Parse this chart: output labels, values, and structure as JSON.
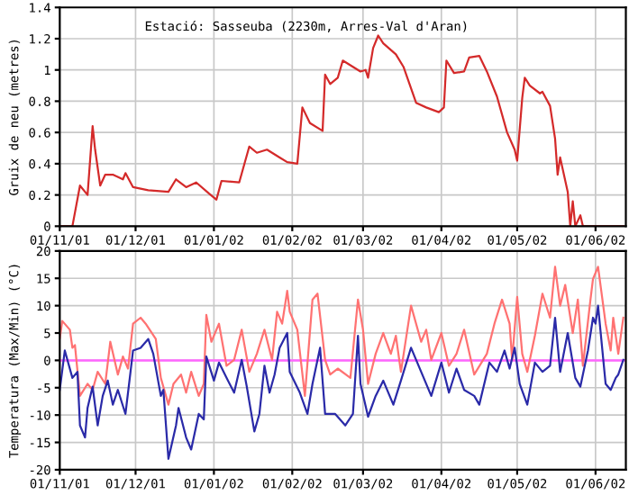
{
  "chart_data": [
    {
      "type": "line",
      "title": "Estació: Sasseuba (2230m, Arres-Val d'Aran)",
      "ylabel": "Gruix de neu (metres)",
      "grid": true,
      "legend": false,
      "marker": "none",
      "line_style": "solid",
      "xlim": [
        "2001-11-01",
        "2002-06-13"
      ],
      "xticks": [
        {
          "value": "2001-11-01",
          "label": "01/11/01"
        },
        {
          "value": "2001-12-01",
          "label": "01/12/01"
        },
        {
          "value": "2002-01-01",
          "label": "01/01/02"
        },
        {
          "value": "2002-02-01",
          "label": "01/02/02"
        },
        {
          "value": "2002-03-01",
          "label": "01/03/02"
        },
        {
          "value": "2002-04-01",
          "label": "01/04/02"
        },
        {
          "value": "2002-05-01",
          "label": "01/05/02"
        },
        {
          "value": "2002-06-01",
          "label": "01/06/02"
        }
      ],
      "ylim": [
        0,
        1.4
      ],
      "yticks": [
        0,
        0.2,
        0.4,
        0.6,
        0.8,
        1,
        1.2,
        1.4
      ],
      "series": [
        {
          "color": "#d42a2a",
          "x": [
            "2001-11-01",
            "2001-11-06",
            "2001-11-09",
            "2001-11-11",
            "2001-11-12",
            "2001-11-14",
            "2001-11-15",
            "2001-11-17",
            "2001-11-19",
            "2001-11-22",
            "2001-11-26",
            "2001-11-27",
            "2001-11-30",
            "2001-12-06",
            "2001-12-14",
            "2001-12-17",
            "2001-12-21",
            "2001-12-25",
            "2001-12-30",
            "2002-01-02",
            "2002-01-04",
            "2002-01-11",
            "2002-01-15",
            "2002-01-18",
            "2002-01-22",
            "2002-01-27",
            "2002-01-30",
            "2002-02-03",
            "2002-02-05",
            "2002-02-08",
            "2002-02-13",
            "2002-02-14",
            "2002-02-16",
            "2002-02-19",
            "2002-02-21",
            "2002-02-25",
            "2002-02-28",
            "2002-03-02",
            "2002-03-03",
            "2002-03-05",
            "2002-03-07",
            "2002-03-09",
            "2002-03-14",
            "2002-03-17",
            "2002-03-22",
            "2002-03-26",
            "2002-03-31",
            "2002-04-02",
            "2002-04-03",
            "2002-04-06",
            "2002-04-10",
            "2002-04-12",
            "2002-04-16",
            "2002-04-19",
            "2002-04-23",
            "2002-04-27",
            "2002-04-30",
            "2002-05-01",
            "2002-05-03",
            "2002-05-04",
            "2002-05-06",
            "2002-05-10",
            "2002-05-11",
            "2002-05-14",
            "2002-05-16",
            "2002-05-17",
            "2002-05-18",
            "2002-05-21",
            "2002-05-22",
            "2002-05-23",
            "2002-05-24",
            "2002-05-26",
            "2002-05-27",
            "2002-06-12"
          ],
          "values": [
            0,
            0,
            0.26,
            0.22,
            0.2,
            0.64,
            0.49,
            0.26,
            0.33,
            0.33,
            0.3,
            0.34,
            0.25,
            0.23,
            0.22,
            0.3,
            0.25,
            0.28,
            0.21,
            0.17,
            0.29,
            0.28,
            0.51,
            0.47,
            0.49,
            0.44,
            0.41,
            0.4,
            0.76,
            0.66,
            0.61,
            0.97,
            0.91,
            0.95,
            1.06,
            1.02,
            0.99,
            1.0,
            0.95,
            1.14,
            1.22,
            1.17,
            1.1,
            1.02,
            0.79,
            0.76,
            0.73,
            0.76,
            1.06,
            0.98,
            0.99,
            1.08,
            1.09,
            0.99,
            0.83,
            0.6,
            0.49,
            0.42,
            0.82,
            0.95,
            0.9,
            0.85,
            0.86,
            0.77,
            0.56,
            0.33,
            0.44,
            0.22,
            0,
            0.16,
            0,
            0.07,
            0,
            0
          ]
        }
      ]
    },
    {
      "type": "line",
      "ylabel": "Temperatura (Max/Min) (°C)",
      "grid": true,
      "legend": false,
      "marker": "none",
      "line_style": "solid",
      "xlim": [
        "2001-11-01",
        "2002-06-13"
      ],
      "xticks": [
        {
          "value": "2001-11-01",
          "label": "01/11/01"
        },
        {
          "value": "2001-12-01",
          "label": "01/12/01"
        },
        {
          "value": "2002-01-01",
          "label": "01/01/02"
        },
        {
          "value": "2002-02-01",
          "label": "01/02/02"
        },
        {
          "value": "2002-03-01",
          "label": "01/03/02"
        },
        {
          "value": "2002-04-01",
          "label": "01/04/02"
        },
        {
          "value": "2002-05-01",
          "label": "01/05/02"
        },
        {
          "value": "2002-06-01",
          "label": "01/06/02"
        }
      ],
      "ylim": [
        -20,
        20
      ],
      "yticks": [
        -20,
        -15,
        -10,
        -5,
        0,
        5,
        10,
        15,
        20
      ],
      "ref_lines": [
        {
          "axis": "y",
          "value": 0,
          "color": "#ff66ff"
        }
      ],
      "series": [
        {
          "color": "#ff7272",
          "x": [
            "2001-11-01",
            "2001-11-02",
            "2001-11-05",
            "2001-11-06",
            "2001-11-07",
            "2001-11-09",
            "2001-11-12",
            "2001-11-14",
            "2001-11-16",
            "2001-11-19",
            "2001-11-21",
            "2001-11-24",
            "2001-11-26",
            "2001-11-28",
            "2001-11-30",
            "2001-12-03",
            "2001-12-05",
            "2001-12-09",
            "2001-12-11",
            "2001-12-14",
            "2001-12-16",
            "2001-12-19",
            "2001-12-21",
            "2001-12-23",
            "2001-12-26",
            "2001-12-28",
            "2001-12-29",
            "2001-12-31",
            "2002-01-03",
            "2002-01-06",
            "2002-01-09",
            "2002-01-12",
            "2002-01-15",
            "2002-01-18",
            "2002-01-21",
            "2002-01-24",
            "2002-01-26",
            "2002-01-28",
            "2002-01-30",
            "2002-01-31",
            "2002-02-03",
            "2002-02-06",
            "2002-02-09",
            "2002-02-11",
            "2002-02-14",
            "2002-02-16",
            "2002-02-19",
            "2002-02-24",
            "2002-02-27",
            "2002-03-01",
            "2002-03-03",
            "2002-03-06",
            "2002-03-09",
            "2002-03-12",
            "2002-03-14",
            "2002-03-16",
            "2002-03-20",
            "2002-03-24",
            "2002-03-26",
            "2002-03-28",
            "2002-04-01",
            "2002-04-04",
            "2002-04-07",
            "2002-04-10",
            "2002-04-14",
            "2002-04-19",
            "2002-04-22",
            "2002-04-25",
            "2002-04-28",
            "2002-04-29",
            "2002-05-01",
            "2002-05-03",
            "2002-05-05",
            "2002-05-08",
            "2002-05-11",
            "2002-05-14",
            "2002-05-16",
            "2002-05-18",
            "2002-05-20",
            "2002-05-23",
            "2002-05-25",
            "2002-05-27",
            "2002-05-30",
            "2002-05-31",
            "2002-06-02",
            "2002-06-05",
            "2002-06-07",
            "2002-06-08",
            "2002-06-10",
            "2002-06-12"
          ],
          "values": [
            4,
            7.2,
            5.6,
            2.3,
            2.8,
            -6.5,
            -4.3,
            -5.4,
            -2.1,
            -4.3,
            3.4,
            -2.6,
            0.7,
            -1.5,
            6.7,
            7.8,
            6.7,
            3.9,
            -3.2,
            -8.1,
            -4.3,
            -2.6,
            -5.9,
            -2.1,
            -6.5,
            -4.3,
            8.3,
            3.4,
            6.7,
            -1,
            0.1,
            5.6,
            -2.1,
            1.2,
            5.6,
            0.1,
            8.9,
            6.7,
            12.7,
            8.9,
            5.6,
            -6.5,
            11.1,
            12.2,
            0.1,
            -2.6,
            -1.5,
            -3.2,
            11.1,
            5.6,
            -4.3,
            1.2,
            5,
            1.2,
            4.5,
            -2.1,
            10,
            3.4,
            5.6,
            0.1,
            5,
            -1,
            1.2,
            5.6,
            -2.6,
            1.2,
            6.7,
            11.1,
            6.7,
            0.1,
            11.6,
            1.2,
            -2.1,
            4.5,
            12.2,
            7.8,
            17.1,
            10,
            13.8,
            5,
            11.1,
            -1,
            11.1,
            14.9,
            17.1,
            6.7,
            1.8,
            7.8,
            1.2,
            7.8
          ]
        },
        {
          "color": "#2a2aa8",
          "x": [
            "2001-11-01",
            "2001-11-03",
            "2001-11-06",
            "2001-11-08",
            "2001-11-09",
            "2001-11-11",
            "2001-11-12",
            "2001-11-14",
            "2001-11-16",
            "2001-11-18",
            "2001-11-20",
            "2001-11-22",
            "2001-11-24",
            "2001-11-27",
            "2001-11-29",
            "2001-11-30",
            "2001-12-03",
            "2001-12-06",
            "2001-12-08",
            "2001-12-11",
            "2001-12-12",
            "2001-12-14",
            "2001-12-17",
            "2001-12-18",
            "2001-12-21",
            "2001-12-23",
            "2001-12-26",
            "2001-12-28",
            "2001-12-29",
            "2002-01-01",
            "2002-01-03",
            "2002-01-06",
            "2002-01-09",
            "2002-01-12",
            "2002-01-14",
            "2002-01-17",
            "2002-01-19",
            "2002-01-21",
            "2002-01-23",
            "2002-01-25",
            "2002-01-27",
            "2002-01-30",
            "2002-01-31",
            "2002-02-04",
            "2002-02-07",
            "2002-02-09",
            "2002-02-12",
            "2002-02-14",
            "2002-02-18",
            "2002-02-22",
            "2002-02-25",
            "2002-02-27",
            "2002-02-28",
            "2002-03-03",
            "2002-03-06",
            "2002-03-09",
            "2002-03-13",
            "2002-03-16",
            "2002-03-20",
            "2002-03-24",
            "2002-03-28",
            "2002-04-01",
            "2002-04-04",
            "2002-04-07",
            "2002-04-10",
            "2002-04-14",
            "2002-04-16",
            "2002-04-20",
            "2002-04-23",
            "2002-04-26",
            "2002-04-28",
            "2002-04-30",
            "2002-05-02",
            "2002-05-05",
            "2002-05-08",
            "2002-05-11",
            "2002-05-14",
            "2002-05-16",
            "2002-05-18",
            "2002-05-21",
            "2002-05-24",
            "2002-05-26",
            "2002-05-29",
            "2002-05-31",
            "2002-06-01",
            "2002-06-02",
            "2002-06-05",
            "2002-06-07",
            "2002-06-09",
            "2002-06-10",
            "2002-06-12"
          ],
          "values": [
            -5.4,
            1.8,
            -3.2,
            -2.1,
            -11.9,
            -14.1,
            -8.7,
            -4.8,
            -11.9,
            -6.5,
            -3.7,
            -8.1,
            -5.4,
            -9.8,
            -2.1,
            1.8,
            2.3,
            3.9,
            1.2,
            -6.5,
            -5.4,
            -18,
            -11.9,
            -8.7,
            -14.1,
            -16.3,
            -9.8,
            -10.8,
            0.7,
            -3.7,
            -0.4,
            -3.2,
            -5.9,
            0.1,
            -4.8,
            -13,
            -9.8,
            -1,
            -5.9,
            -2.6,
            2.3,
            5,
            -2.1,
            -5.9,
            -9.8,
            -4.3,
            2.3,
            -9.8,
            -9.8,
            -11.9,
            -9.8,
            4.5,
            -4.3,
            -10.3,
            -6.5,
            -3.7,
            -8.1,
            -3.7,
            2.3,
            -2.1,
            -6.5,
            -0.4,
            -5.9,
            -1.5,
            -5.4,
            -6.5,
            -8.1,
            -0.4,
            -2.1,
            1.8,
            -1.5,
            2.3,
            -4.3,
            -8.1,
            -0.4,
            -2.1,
            -1,
            7.8,
            -2.1,
            5,
            -3.2,
            -4.8,
            1.8,
            7.8,
            6.7,
            10,
            -4.3,
            -5.4,
            -3.2,
            -2.6,
            0.1
          ]
        }
      ]
    }
  ]
}
